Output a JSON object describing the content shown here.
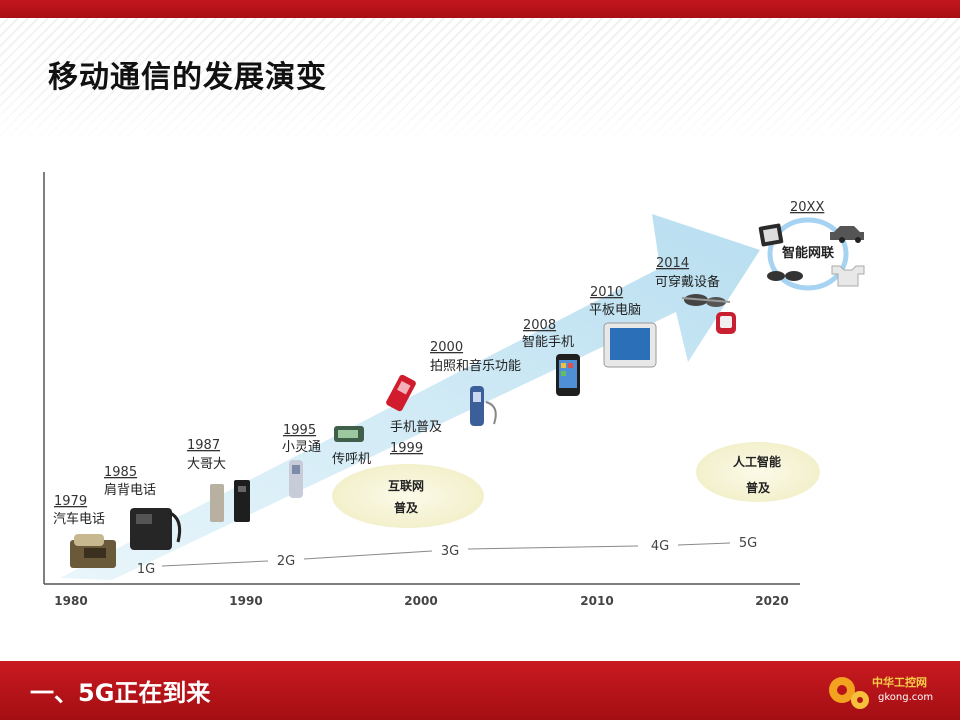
{
  "slide": {
    "title": "移动通信的发展演变",
    "footer_title": "一、5G正在到来"
  },
  "timeline_axis": {
    "ticks": [
      "1980",
      "1990",
      "2000",
      "2010",
      "2020"
    ]
  },
  "generations": [
    "1G",
    "2G",
    "3G",
    "4G",
    "5G"
  ],
  "milestones": [
    {
      "year": "1979",
      "label": "汽车电话",
      "icon": "car-phone-icon"
    },
    {
      "year": "1985",
      "label": "肩背电话",
      "icon": "bag-phone-icon"
    },
    {
      "year": "1987",
      "label": "大哥大",
      "icon": "brick-phone-icon"
    },
    {
      "year": "1995",
      "label": "小灵通",
      "icon": "phs-phone-icon"
    },
    {
      "year": "",
      "label": "传呼机",
      "icon": "pager-icon"
    },
    {
      "year": "1999",
      "label": "手机普及",
      "icon": "flip-phone-icon"
    },
    {
      "year": "2000",
      "label": "拍照和音乐功能",
      "icon": "music-phone-icon"
    },
    {
      "year": "2008",
      "label": "智能手机",
      "icon": "smartphone-icon"
    },
    {
      "year": "2010",
      "label": "平板电脑",
      "icon": "tablet-icon"
    },
    {
      "year": "2014",
      "label": "可穿戴设备",
      "icon": "wearable-icon"
    },
    {
      "year": "20XX",
      "label": "智能网联",
      "icon": "iot-icon"
    }
  ],
  "bubbles": [
    {
      "line1": "互联网",
      "line2": "普及"
    },
    {
      "line1": "人工智能",
      "line2": "普及"
    }
  ],
  "watermark": {
    "brand": "中华工控网",
    "url": "gkong.com"
  },
  "colors": {
    "brand_red": "#c4161c",
    "arrow_blue": "#bfe3f2",
    "bubble_yellow": "#f7f4d2"
  }
}
